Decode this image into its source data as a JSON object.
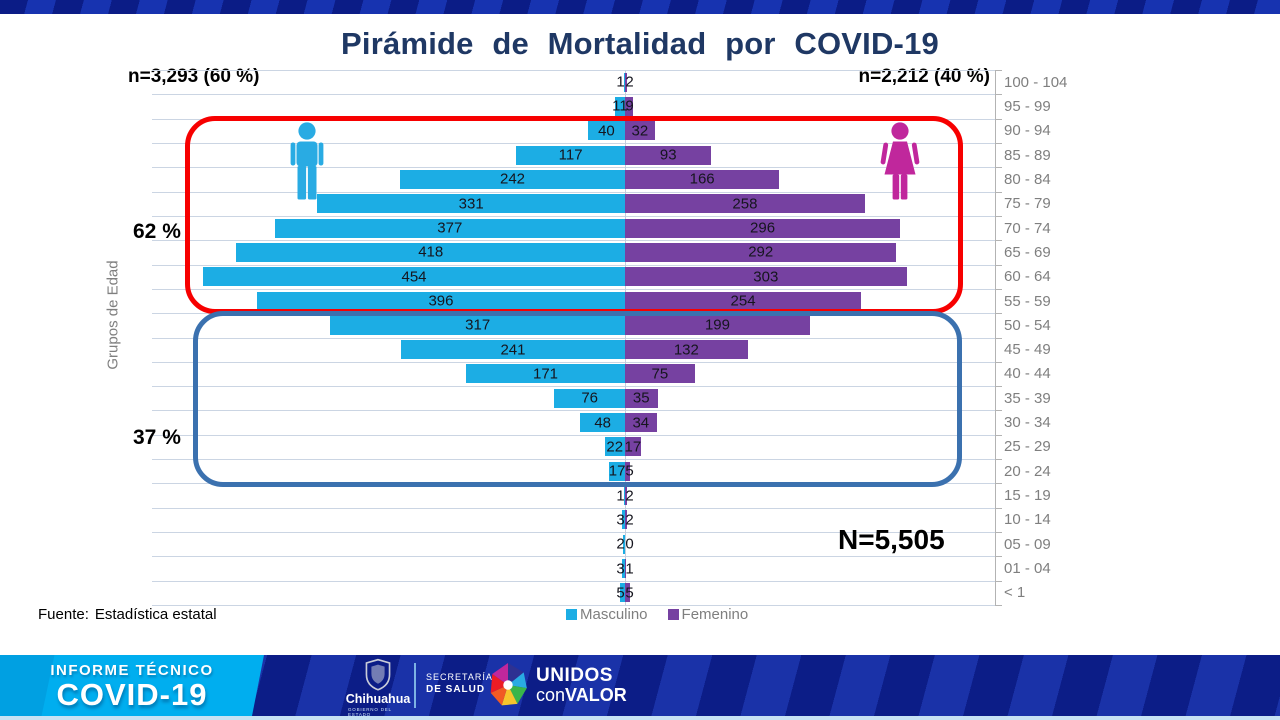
{
  "title": "Pirámide de Mortalidad por COVID-19",
  "annotations": {
    "male_n": "n=3,293 (60 %)",
    "female_n": "n=2,212 (40 %)",
    "total_n": "N=5,505",
    "older_pct": "62 %",
    "younger_pct": "37 %"
  },
  "source": {
    "label": "Fuente:",
    "value": "Estadística estatal"
  },
  "chart_data": {
    "type": "bar",
    "variant": "population_pyramid",
    "title": "Pirámide de Mortalidad por COVID-19",
    "ylabel": "Grupos de Edad",
    "categories_top_to_bottom": [
      "100 - 104",
      "95 - 99",
      "90 - 94",
      "85 - 89",
      "80 - 84",
      "75 - 79",
      "70 - 74",
      "65 - 69",
      "60 - 64",
      "55 - 59",
      "50 - 54",
      "45 - 49",
      "40 - 44",
      "35 - 39",
      "30 - 34",
      "25 - 29",
      "20 - 24",
      "15 - 19",
      "10 - 14",
      "05 - 09",
      "01 - 04",
      "< 1"
    ],
    "series": [
      {
        "name": "Masculino",
        "side": "left",
        "color": "#1cade4",
        "total": 3293,
        "values": [
          1,
          11,
          40,
          117,
          242,
          331,
          377,
          418,
          454,
          396,
          317,
          241,
          171,
          76,
          48,
          22,
          17,
          1,
          3,
          2,
          3,
          5
        ]
      },
      {
        "name": "Femenino",
        "side": "right",
        "color": "#7641a1",
        "total": 2212,
        "values": [
          2,
          9,
          32,
          93,
          166,
          258,
          296,
          292,
          303,
          254,
          199,
          132,
          75,
          35,
          34,
          17,
          5,
          2,
          2,
          0,
          1,
          5
        ]
      }
    ],
    "grand_total": 5505,
    "grid": true,
    "legend_position": "bottom",
    "value_labels": "on_bars"
  },
  "highlight_boxes": [
    {
      "label": "62 %",
      "color": "#f70000",
      "rows_covered": "90 - 94 through 55 - 59"
    },
    {
      "label": "37 %",
      "color": "#3b71af",
      "rows_covered": "50 - 54 through 20 - 24"
    }
  ],
  "icons": {
    "male": "male-figure-icon",
    "female": "female-figure-icon",
    "male_color": "#29abe3",
    "female_color": "#c0279c"
  },
  "footer_banner": {
    "program_line1": "INFORME TÉCNICO",
    "program_line2": "COVID-19",
    "gov": {
      "name": "Chihuahua",
      "sub": "GOBIERNO DEL ESTADO"
    },
    "ministry": {
      "line1": "SECRETARÍA",
      "line2": "DE SALUD"
    },
    "motto": {
      "word1": "UNIDOS",
      "word2a": "con",
      "word2b": "VALOR"
    }
  }
}
